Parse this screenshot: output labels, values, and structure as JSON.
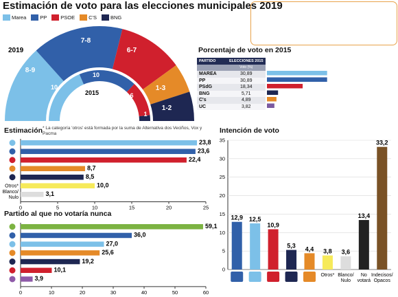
{
  "title": "Estimación de voto para las elecciones municipales 2019",
  "legend": [
    {
      "name": "Marea",
      "color": "#7cc0e8"
    },
    {
      "name": "PP",
      "color": "#3160a9"
    },
    {
      "name": "PSOE",
      "color": "#d0202d"
    },
    {
      "name": "C'S",
      "color": "#e58a28"
    },
    {
      "name": "BNG",
      "color": "#1e2752"
    }
  ],
  "hemicycle": {
    "label_2019": "2019",
    "label_2015": "2015"
  },
  "pct_section": {
    "title": "Porcentaje de voto en 2015",
    "col_party": "PARTIDO",
    "col_elections": "ELECCIONES 2015",
    "col_sub": "Voto (%)"
  },
  "estimacion": {
    "title": "Estimación",
    "note": "* La categoría 'otros' está formada por la suma de Alternativa dos Veciños, Vox y Pacma"
  },
  "partido_section": {
    "title": "Partido al que no votaría nunca"
  },
  "intencion_section": {
    "title": "Intención de voto"
  },
  "chart_data": [
    {
      "type": "pie",
      "title": "Estimación de voto para las elecciones municipales 2019",
      "series": [
        {
          "name": "2019",
          "categories": [
            "Marea",
            "PP",
            "PSOE",
            "C'S",
            "BNG"
          ],
          "values": [
            "8-9",
            "7-8",
            "6-7",
            "1-3",
            "1-2"
          ]
        },
        {
          "name": "2015",
          "categories": [
            "Marea",
            "PP",
            "PSOE",
            "C'S",
            "BNG"
          ],
          "values": [
            10,
            10,
            6,
            0,
            1
          ]
        }
      ]
    },
    {
      "type": "table",
      "title": "Porcentaje de voto en 2015",
      "columns": [
        "PARTIDO",
        "ELECCIONES 2015"
      ],
      "rows": [
        {
          "party": "MAREA",
          "value": "30,89",
          "color": "#7cc0e8"
        },
        {
          "party": "PP",
          "value": "30,89",
          "color": "#3160a9"
        },
        {
          "party": "PSdG",
          "value": "18,34",
          "color": "#d0202d"
        },
        {
          "party": "BNG",
          "value": "5,71",
          "color": "#1e2752"
        },
        {
          "party": "C's",
          "value": "4,89",
          "color": "#e58a28"
        },
        {
          "party": "UC",
          "value": "3,82",
          "color": "#7b5aa0"
        }
      ]
    },
    {
      "type": "bar",
      "title": "Estimación",
      "categories": [
        "Marea",
        "PP",
        "PSOE",
        "C'S",
        "BNG",
        "Otros*",
        "Blanco/Nulo"
      ],
      "labels": [
        "",
        "",
        "",
        "",
        "",
        "Otros*",
        "Blanco/ Nulo"
      ],
      "values": [
        23.8,
        23.6,
        22.4,
        8.7,
        8.5,
        10.0,
        3.1
      ],
      "display": [
        "23,8",
        "23,6",
        "22,4",
        "8,7",
        "8,5",
        "10,0",
        "3,1"
      ],
      "colors": [
        "#7cc0e8",
        "#3160a9",
        "#d0202d",
        "#e58a28",
        "#1e2752",
        "#f6ea5a",
        "#dddddd"
      ],
      "xlim": [
        0,
        25
      ],
      "xticks": [
        "0",
        "5",
        "10",
        "15",
        "20",
        "25"
      ]
    },
    {
      "type": "bar",
      "title": "Partido al que no votaría nunca",
      "values": [
        59.1,
        36.0,
        27.0,
        25.6,
        19.2,
        10.1,
        3.9
      ],
      "display": [
        "59,1",
        "36,0",
        "27,0",
        "25,6",
        "19,2",
        "10,1",
        "3,9"
      ],
      "colors": [
        "#7cb342",
        "#3160a9",
        "#7cc0e8",
        "#e58a28",
        "#1e2752",
        "#d0202d",
        "#8e5aa8"
      ],
      "xlim": [
        0,
        60
      ],
      "xticks": [
        "0",
        "10",
        "20",
        "30",
        "40",
        "50",
        "60"
      ]
    },
    {
      "type": "bar",
      "title": "Intención de voto",
      "categories": [
        "PP",
        "Marea",
        "PSOE",
        "BNG",
        "C's",
        "Otros*",
        "Blanco/ Nulo",
        "No votará",
        "Indecisos/ Opacos"
      ],
      "labels": [
        "",
        "",
        "",
        "",
        "",
        "Otros*",
        "Blanco/ Nulo",
        "No votará",
        "Indecisos/ Opacos"
      ],
      "values": [
        12.9,
        12.5,
        10.9,
        5.3,
        4.4,
        3.8,
        3.6,
        13.4,
        33.2
      ],
      "display": [
        "12,9",
        "12,5",
        "10,9",
        "5,3",
        "4,4",
        "3,8",
        "3,6",
        "13,4",
        "33,2"
      ],
      "colors": [
        "#3160a9",
        "#7cc0e8",
        "#d0202d",
        "#1e2752",
        "#e58a28",
        "#f6ea5a",
        "#dddddd",
        "#222222",
        "#7a5226"
      ],
      "ylim": [
        0,
        35
      ],
      "yticks": [
        "0",
        "5",
        "10",
        "15",
        "20",
        "25",
        "30",
        "35"
      ]
    }
  ]
}
